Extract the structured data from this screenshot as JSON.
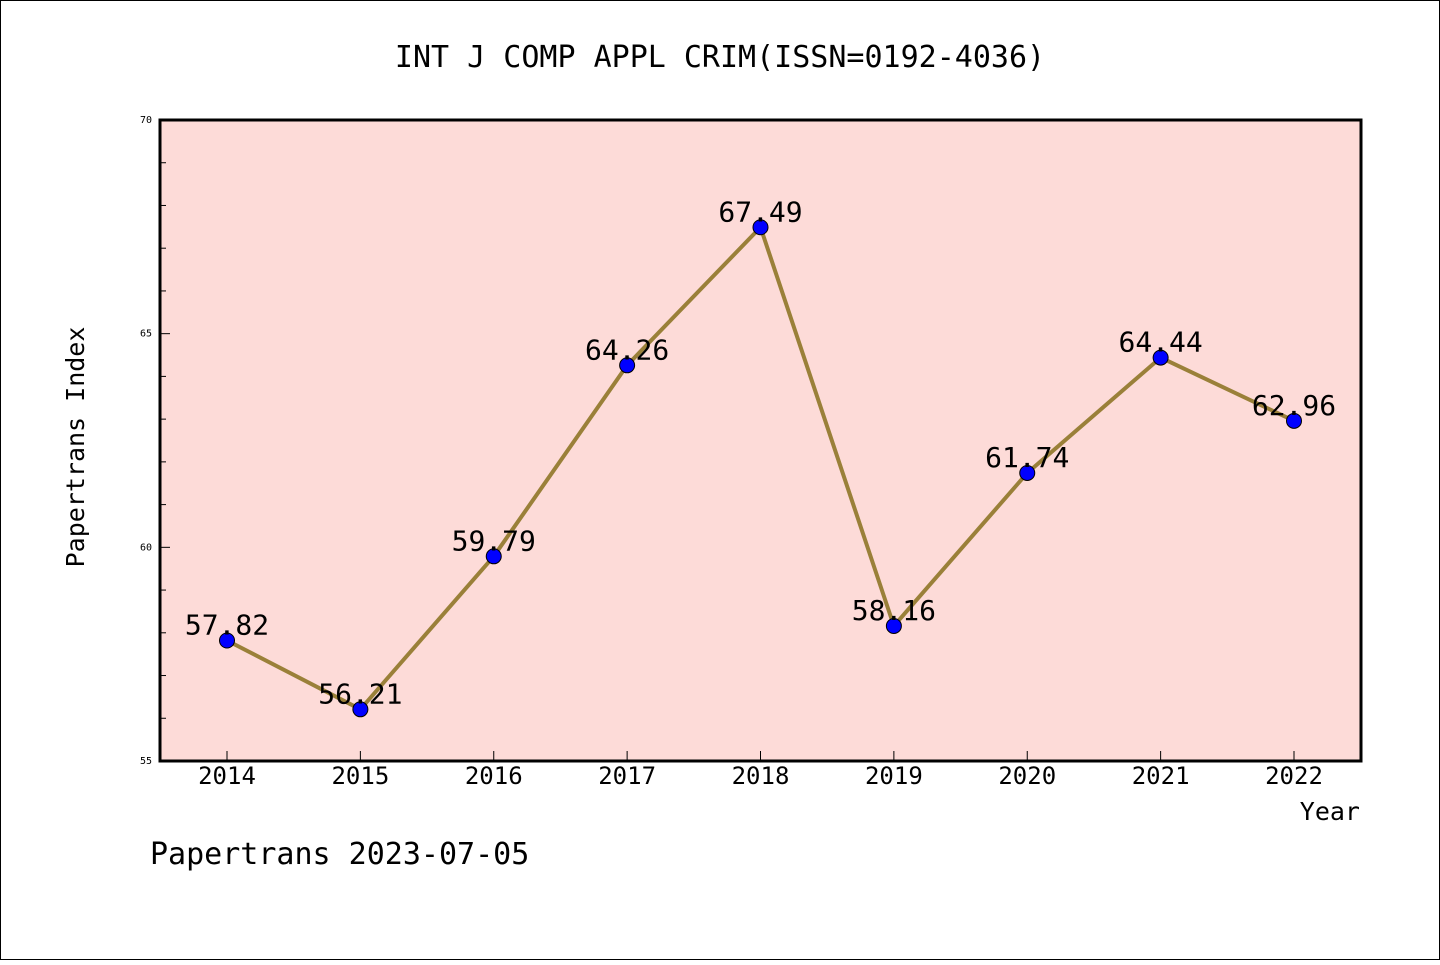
{
  "chart_data": {
    "type": "line",
    "title": "INT J COMP APPL CRIM(ISSN=0192-4036)",
    "xlabel": "Year",
    "ylabel": "Papertrans Index",
    "categories": [
      "2014",
      "2015",
      "2016",
      "2017",
      "2018",
      "2019",
      "2020",
      "2021",
      "2022"
    ],
    "series": [
      {
        "values": [
          57.82,
          56.21,
          59.79,
          64.26,
          67.49,
          58.16,
          61.74,
          64.44,
          62.96
        ]
      }
    ],
    "data_labels": [
      "57.82",
      "56.21",
      "59.79",
      "64.26",
      "67.49",
      "58.16",
      "61.74",
      "64.44",
      "62.96"
    ],
    "ylim": [
      55,
      70
    ],
    "yticks": [
      "55",
      "60",
      "65",
      "70"
    ],
    "grid": false,
    "legend": "none"
  },
  "footer": {
    "text": "Papertrans 2023-07-05"
  },
  "colors": {
    "plot_background": "#fddbd8",
    "line": "#9a8039",
    "marker": "#0000ff",
    "axis": "#000000",
    "page_border": "#000000"
  }
}
